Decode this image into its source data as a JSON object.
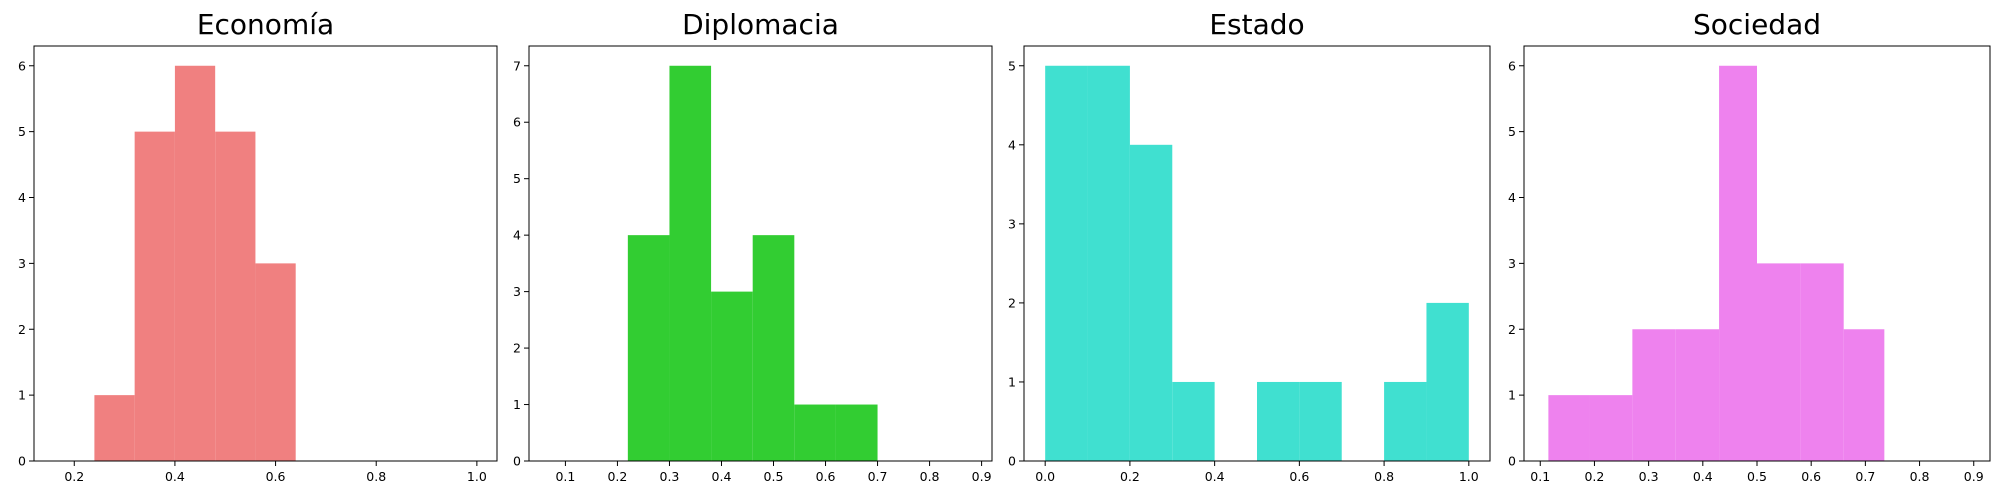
{
  "chart_data": [
    {
      "type": "bar",
      "title": "Economía",
      "color": "#F08080",
      "xlim": [
        0.12,
        1.04
      ],
      "ylim": [
        0,
        6.3
      ],
      "xticks": [
        0.2,
        0.4,
        0.6,
        0.8,
        1.0
      ],
      "xtick_labels": [
        "0.2",
        "0.4",
        "0.6",
        "0.8",
        "1.0"
      ],
      "yticks": [
        0,
        1,
        2,
        3,
        4,
        5,
        6
      ],
      "ytick_labels": [
        "0",
        "1",
        "2",
        "3",
        "4",
        "5",
        "6"
      ],
      "bins": [
        {
          "start": 0.24,
          "end": 0.32,
          "count": 1
        },
        {
          "start": 0.32,
          "end": 0.4,
          "count": 5
        },
        {
          "start": 0.4,
          "end": 0.48,
          "count": 6
        },
        {
          "start": 0.48,
          "end": 0.56,
          "count": 5
        },
        {
          "start": 0.56,
          "end": 0.64,
          "count": 3
        }
      ]
    },
    {
      "type": "bar",
      "title": "Diplomacia",
      "color": "#32CD32",
      "xlim": [
        0.03,
        0.92
      ],
      "ylim": [
        0,
        7.35
      ],
      "xticks": [
        0.1,
        0.2,
        0.3,
        0.4,
        0.5,
        0.6,
        0.7,
        0.8,
        0.9
      ],
      "xtick_labels": [
        "0.1",
        "0.2",
        "0.3",
        "0.4",
        "0.5",
        "0.6",
        "0.7",
        "0.8",
        "0.9"
      ],
      "yticks": [
        0,
        1,
        2,
        3,
        4,
        5,
        6,
        7
      ],
      "ytick_labels": [
        "0",
        "1",
        "2",
        "3",
        "4",
        "5",
        "6",
        "7"
      ],
      "bins": [
        {
          "start": 0.22,
          "end": 0.3,
          "count": 4
        },
        {
          "start": 0.3,
          "end": 0.38,
          "count": 7
        },
        {
          "start": 0.38,
          "end": 0.46,
          "count": 3
        },
        {
          "start": 0.46,
          "end": 0.54,
          "count": 4
        },
        {
          "start": 0.54,
          "end": 0.62,
          "count": 1
        },
        {
          "start": 0.62,
          "end": 0.7,
          "count": 1
        }
      ]
    },
    {
      "type": "bar",
      "title": "Estado",
      "color": "#40E0D0",
      "xlim": [
        -0.05,
        1.05
      ],
      "ylim": [
        0,
        5.25
      ],
      "xticks": [
        0.0,
        0.2,
        0.4,
        0.6,
        0.8,
        1.0
      ],
      "xtick_labels": [
        "0.0",
        "0.2",
        "0.4",
        "0.6",
        "0.8",
        "1.0"
      ],
      "yticks": [
        0,
        1,
        2,
        3,
        4,
        5
      ],
      "ytick_labels": [
        "0",
        "1",
        "2",
        "3",
        "4",
        "5"
      ],
      "bins": [
        {
          "start": 0.0,
          "end": 0.1,
          "count": 5
        },
        {
          "start": 0.1,
          "end": 0.2,
          "count": 5
        },
        {
          "start": 0.2,
          "end": 0.3,
          "count": 4
        },
        {
          "start": 0.3,
          "end": 0.4,
          "count": 1
        },
        {
          "start": 0.4,
          "end": 0.5,
          "count": 0
        },
        {
          "start": 0.5,
          "end": 0.6,
          "count": 1
        },
        {
          "start": 0.6,
          "end": 0.7,
          "count": 1
        },
        {
          "start": 0.7,
          "end": 0.8,
          "count": 0
        },
        {
          "start": 0.8,
          "end": 0.9,
          "count": 1
        },
        {
          "start": 0.9,
          "end": 1.0,
          "count": 2
        }
      ]
    },
    {
      "type": "bar",
      "title": "Sociedad",
      "color": "#EE82EE",
      "xlim": [
        0.07,
        0.93
      ],
      "ylim": [
        0,
        6.3
      ],
      "xticks": [
        0.1,
        0.2,
        0.3,
        0.4,
        0.5,
        0.6,
        0.7,
        0.8,
        0.9
      ],
      "xtick_labels": [
        "0.1",
        "0.2",
        "0.3",
        "0.4",
        "0.5",
        "0.6",
        "0.7",
        "0.8",
        "0.9"
      ],
      "yticks": [
        0,
        1,
        2,
        3,
        4,
        5,
        6
      ],
      "ytick_labels": [
        "0",
        "1",
        "2",
        "3",
        "4",
        "5",
        "6"
      ],
      "bins": [
        {
          "start": 0.115,
          "end": 0.19,
          "count": 1
        },
        {
          "start": 0.19,
          "end": 0.27,
          "count": 1
        },
        {
          "start": 0.27,
          "end": 0.35,
          "count": 2
        },
        {
          "start": 0.35,
          "end": 0.43,
          "count": 2
        },
        {
          "start": 0.43,
          "end": 0.5,
          "count": 6
        },
        {
          "start": 0.5,
          "end": 0.58,
          "count": 3
        },
        {
          "start": 0.58,
          "end": 0.66,
          "count": 3
        },
        {
          "start": 0.66,
          "end": 0.735,
          "count": 2
        }
      ]
    }
  ]
}
